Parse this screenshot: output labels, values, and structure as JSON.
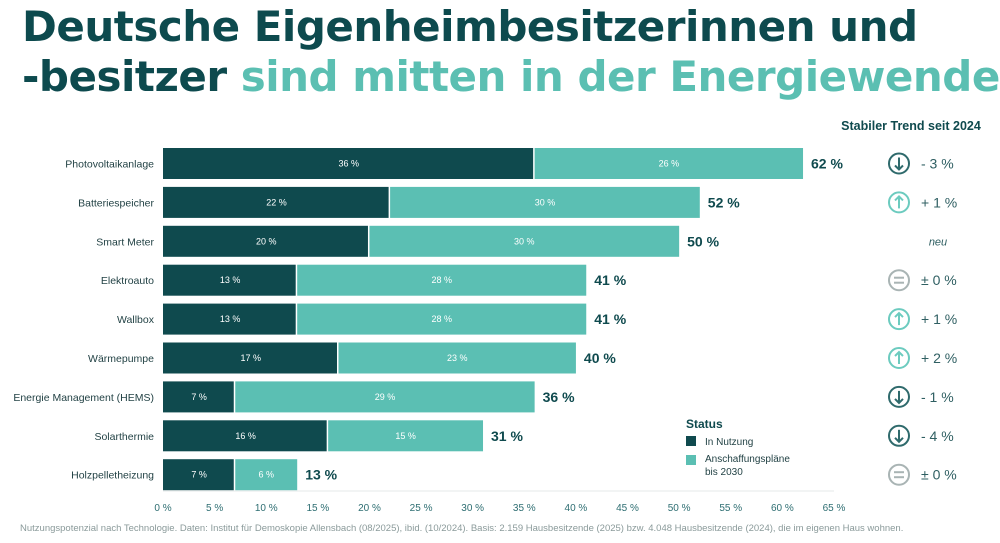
{
  "title": {
    "part1": "Deutsche Eigenheimbesitzerinnen und",
    "part2": "-besitzer",
    "part3": "sind mitten in der Energiewende"
  },
  "colors": {
    "dark": "#0f4a4e",
    "light": "#5bbfb3",
    "neutral": "#a9b4b4"
  },
  "chart_data": {
    "type": "bar",
    "stacked": true,
    "orientation": "horizontal",
    "categories": [
      "Photovoltaikanlage",
      "Batteriespeicher",
      "Smart Meter",
      "Elektroauto",
      "Wallbox",
      "Wärmepumpe",
      "Energie Management (HEMS)",
      "Solarthermie",
      "Holzpelletheizung"
    ],
    "series": [
      {
        "name": "In Nutzung",
        "values": [
          36,
          22,
          20,
          13,
          13,
          17,
          7,
          16,
          7
        ],
        "labels": [
          "36 %",
          "22 %",
          "20 %",
          "13 %",
          "13 %",
          "17 %",
          "7 %",
          "16 %",
          "7 %"
        ]
      },
      {
        "name": "Anschaffungspläne bis 2030",
        "values": [
          26,
          30,
          30,
          28,
          28,
          23,
          29,
          15,
          6
        ],
        "labels": [
          "26 %",
          "30 %",
          "30 %",
          "28 %",
          "28 %",
          "23 %",
          "29 %",
          "15 %",
          "6 %"
        ]
      }
    ],
    "totals": [
      "62 %",
      "52 %",
      "50 %",
      "41 %",
      "41 %",
      "40 %",
      "36 %",
      "31 %",
      "13 %"
    ],
    "xlim": [
      0,
      65
    ],
    "xticks": [
      "0 %",
      "5 %",
      "10 %",
      "15 %",
      "20 %",
      "25 %",
      "30 %",
      "35 %",
      "40 %",
      "45 %",
      "50 %",
      "55 %",
      "60 %",
      "65 %"
    ],
    "legend": {
      "title": "Status",
      "position": "bottom-right"
    },
    "trend": {
      "title": "Stabiler Trend seit 2024",
      "items": [
        {
          "icon": "arrow-down",
          "label": "- 3 %"
        },
        {
          "icon": "arrow-up",
          "label": "+ 1 %"
        },
        {
          "icon": "none",
          "label": "neu"
        },
        {
          "icon": "equal",
          "label": "± 0 %"
        },
        {
          "icon": "arrow-up",
          "label": "+ 1 %"
        },
        {
          "icon": "arrow-up",
          "label": "+ 2 %"
        },
        {
          "icon": "arrow-down",
          "label": "- 1 %"
        },
        {
          "icon": "arrow-down",
          "label": "- 4 %"
        },
        {
          "icon": "equal",
          "label": "± 0 %"
        }
      ]
    }
  },
  "footnote": "Nutzungspotenzial nach Technologie. Daten: Institut für Demoskopie Allensbach (08/2025), ibid. (10/2024). Basis: 2.159 Hausbesitzende (2025) bzw. 4.048 Hausbesitzende (2024), die im eigenen Haus wohnen."
}
